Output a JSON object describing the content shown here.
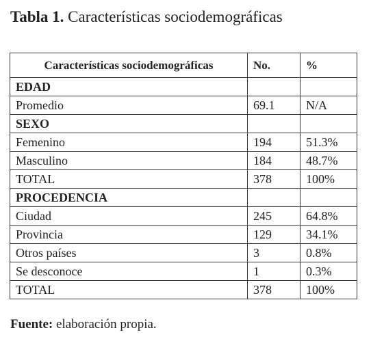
{
  "caption": {
    "label": "Tabla 1.",
    "text": "Características sociodemográficas"
  },
  "table": {
    "header": [
      "Características sociodemográficas",
      "No.",
      "%"
    ],
    "rows": [
      [
        "EDAD"
      ],
      [
        "Promedio",
        "69.1",
        "N/A"
      ],
      [
        "SEXO"
      ],
      [
        "Femenino",
        "194",
        "51.3%"
      ],
      [
        "Masculino",
        "184",
        "48.7%"
      ],
      [
        "TOTAL",
        "378",
        "100%"
      ],
      [
        "PROCEDENCIA"
      ],
      [
        "Ciudad",
        "245",
        "64.8%"
      ],
      [
        "Provincia",
        "129",
        "34.1%"
      ],
      [
        "Otros países",
        "3",
        "0.8%"
      ],
      [
        "Se desconoce",
        "1",
        "0.3%"
      ],
      [
        "TOTAL",
        "378",
        "100%"
      ]
    ]
  },
  "source": {
    "label": "Fuente:",
    "text": "elaboración propia."
  }
}
